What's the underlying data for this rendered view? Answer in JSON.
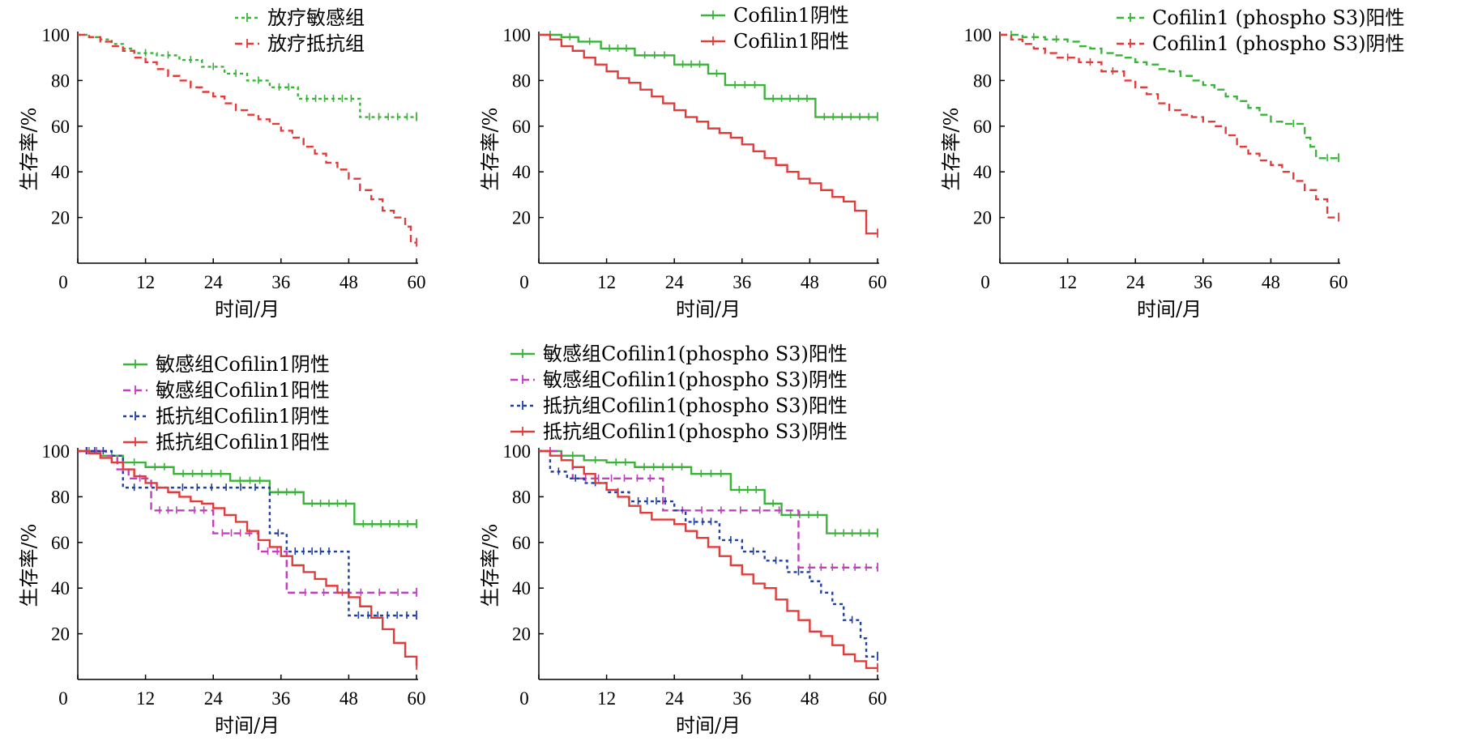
{
  "chart_data": [
    {
      "type": "line",
      "subtype": "kaplan-meier",
      "xlabel": "时间/月",
      "ylabel": "生存率/%",
      "xlim": [
        0,
        60
      ],
      "ylim": [
        0,
        100
      ],
      "xticks": [
        0,
        12,
        24,
        36,
        48,
        60
      ],
      "yticks": [
        20,
        40,
        60,
        80,
        100
      ],
      "legend_position": "top-right",
      "series": [
        {
          "name": "放疗敏感组",
          "color": "#3bb33b",
          "dash": "dotted",
          "x": [
            0,
            2,
            4,
            6,
            8,
            10,
            14,
            18,
            22,
            26,
            30,
            34,
            39,
            50,
            60
          ],
          "y": [
            100,
            99,
            98,
            96,
            94,
            92,
            91,
            89,
            86,
            83,
            80,
            77,
            72,
            64,
            64
          ]
        },
        {
          "name": "放疗抵抗组",
          "color": "#e03c3c",
          "dash": "dashed",
          "x": [
            0,
            2,
            4,
            6,
            8,
            10,
            12,
            14,
            16,
            18,
            20,
            22,
            24,
            26,
            28,
            30,
            32,
            34,
            36,
            38,
            40,
            42,
            44,
            46,
            48,
            50,
            52,
            54,
            56,
            58,
            59,
            60
          ],
          "y": [
            100,
            99,
            97,
            95,
            93,
            90,
            88,
            85,
            82,
            80,
            77,
            75,
            73,
            70,
            67,
            65,
            63,
            61,
            58,
            55,
            51,
            48,
            44,
            41,
            37,
            32,
            28,
            23,
            20,
            16,
            9,
            9
          ]
        }
      ]
    },
    {
      "type": "line",
      "subtype": "kaplan-meier",
      "xlabel": "时间/月",
      "ylabel": "生存率/%",
      "xlim": [
        0,
        60
      ],
      "ylim": [
        0,
        100
      ],
      "xticks": [
        0,
        12,
        24,
        36,
        48,
        60
      ],
      "yticks": [
        20,
        40,
        60,
        80,
        100
      ],
      "legend_position": "top-right",
      "series": [
        {
          "name": "Cofilin1阴性",
          "color": "#3bb33b",
          "dash": "solid",
          "x": [
            0,
            4,
            7,
            11,
            17,
            24,
            30,
            33,
            40,
            49,
            60
          ],
          "y": [
            100,
            99,
            97,
            94,
            91,
            87,
            83,
            78,
            72,
            64,
            64
          ]
        },
        {
          "name": "Cofilin1阳性",
          "color": "#e03c3c",
          "dash": "solid",
          "x": [
            0,
            2,
            4,
            6,
            8,
            10,
            12,
            14,
            16,
            18,
            20,
            22,
            24,
            26,
            28,
            30,
            32,
            34,
            36,
            38,
            40,
            42,
            44,
            46,
            48,
            50,
            52,
            54,
            56,
            58,
            60
          ],
          "y": [
            100,
            98,
            95,
            93,
            90,
            87,
            84,
            81,
            79,
            76,
            73,
            70,
            67,
            64,
            62,
            59,
            57,
            55,
            52,
            49,
            46,
            43,
            40,
            37,
            35,
            32,
            29,
            27,
            23,
            13,
            13
          ]
        }
      ]
    },
    {
      "type": "line",
      "subtype": "kaplan-meier",
      "xlabel": "时间/月",
      "ylabel": "生存率/%",
      "xlim": [
        0,
        60
      ],
      "ylim": [
        0,
        100
      ],
      "xticks": [
        0,
        12,
        24,
        36,
        48,
        60
      ],
      "yticks": [
        20,
        40,
        60,
        80,
        100
      ],
      "legend_position": "top-right",
      "series": [
        {
          "name": "Cofilin1 (phospho S3)阳性",
          "color": "#3bb33b",
          "dash": "dashed",
          "x": [
            0,
            4,
            8,
            12,
            14,
            16,
            18,
            20,
            22,
            24,
            26,
            28,
            30,
            32,
            34,
            36,
            38,
            40,
            42,
            44,
            46,
            48,
            50,
            54,
            55,
            56,
            60
          ],
          "y": [
            100,
            99,
            98,
            97,
            95,
            94,
            92,
            91,
            90,
            88,
            87,
            85,
            84,
            82,
            80,
            78,
            76,
            73,
            71,
            68,
            65,
            62,
            61,
            55,
            51,
            46,
            46
          ]
        },
        {
          "name": "Cofilin1 (phospho S3)阴性",
          "color": "#e03c3c",
          "dash": "dashed",
          "x": [
            0,
            2,
            4,
            6,
            8,
            10,
            14,
            18,
            22,
            24,
            26,
            28,
            30,
            32,
            34,
            36,
            38,
            40,
            42,
            44,
            46,
            48,
            50,
            52,
            54,
            56,
            58,
            60
          ],
          "y": [
            100,
            98,
            96,
            94,
            92,
            90,
            88,
            84,
            80,
            77,
            74,
            70,
            67,
            65,
            64,
            62,
            60,
            56,
            51,
            48,
            45,
            43,
            40,
            36,
            32,
            28,
            20,
            20
          ]
        }
      ]
    },
    {
      "type": "line",
      "subtype": "kaplan-meier",
      "xlabel": "时间/月",
      "ylabel": "生存率/%",
      "xlim": [
        0,
        60
      ],
      "ylim": [
        0,
        100
      ],
      "xticks": [
        0,
        12,
        24,
        36,
        48,
        60
      ],
      "yticks": [
        20,
        40,
        60,
        80,
        100
      ],
      "legend_position": "top-right",
      "series": [
        {
          "name": "敏感组Cofilin1阴性",
          "color": "#3bb33b",
          "dash": "solid",
          "x": [
            0,
            4,
            8,
            12,
            17,
            27,
            34,
            40,
            49,
            60
          ],
          "y": [
            100,
            98,
            95,
            93,
            90,
            87,
            82,
            77,
            68,
            68
          ]
        },
        {
          "name": "敏感组Cofilin1阳性",
          "color": "#c040c0",
          "dash": "dashed",
          "x": [
            0,
            5,
            7,
            9,
            13,
            19,
            24,
            32,
            37,
            60
          ],
          "y": [
            100,
            98,
            92,
            88,
            74,
            74,
            64,
            56,
            38,
            38
          ]
        },
        {
          "name": "抵抗组Cofilin1阴性",
          "color": "#2040a0",
          "dash": "dotted",
          "x": [
            0,
            6,
            8,
            12,
            16,
            34,
            37,
            46,
            48,
            60
          ],
          "y": [
            100,
            98,
            84,
            84,
            84,
            64,
            56,
            56,
            28,
            28
          ]
        },
        {
          "name": "抵抗组Cofilin1阳性",
          "color": "#e03c3c",
          "dash": "solid",
          "x": [
            0,
            2,
            4,
            6,
            8,
            10,
            12,
            14,
            16,
            18,
            20,
            22,
            24,
            26,
            28,
            30,
            32,
            34,
            36,
            38,
            40,
            42,
            44,
            46,
            48,
            50,
            52,
            54,
            56,
            58,
            60
          ],
          "y": [
            100,
            99,
            97,
            95,
            92,
            89,
            86,
            84,
            82,
            80,
            78,
            77,
            75,
            72,
            69,
            65,
            61,
            58,
            54,
            50,
            47,
            44,
            41,
            38,
            36,
            32,
            27,
            22,
            16,
            10,
            6
          ]
        }
      ]
    },
    {
      "type": "line",
      "subtype": "kaplan-meier",
      "xlabel": "时间/月",
      "ylabel": "生存率/%",
      "xlim": [
        0,
        60
      ],
      "ylim": [
        0,
        100
      ],
      "xticks": [
        0,
        12,
        24,
        36,
        48,
        60
      ],
      "yticks": [
        20,
        40,
        60,
        80,
        100
      ],
      "legend_position": "top-left",
      "series": [
        {
          "name": "敏感组Cofilin1(phospho S3)阳性",
          "color": "#3bb33b",
          "dash": "solid",
          "x": [
            0,
            4,
            8,
            12,
            17,
            27,
            34,
            40,
            43,
            51,
            60
          ],
          "y": [
            100,
            98,
            96,
            95,
            93,
            90,
            83,
            77,
            72,
            64,
            64
          ]
        },
        {
          "name": "敏感组Cofilin1(phospho S3)阴性",
          "color": "#c040c0",
          "dash": "dashed",
          "x": [
            0,
            4,
            6,
            22,
            46,
            60
          ],
          "y": [
            100,
            96,
            88,
            74,
            49,
            49
          ]
        },
        {
          "name": "抵抗组Cofilin1(phospho S3)阳性",
          "color": "#2040a0",
          "dash": "dotted",
          "x": [
            0,
            2,
            5,
            8,
            12,
            16,
            24,
            26,
            32,
            36,
            40,
            44,
            48,
            50,
            52,
            54,
            57,
            58,
            60
          ],
          "y": [
            100,
            91,
            88,
            86,
            82,
            78,
            74,
            69,
            61,
            56,
            52,
            47,
            43,
            38,
            33,
            26,
            18,
            10,
            10
          ]
        },
        {
          "name": "抵抗组Cofilin1(phospho S3)阴性",
          "color": "#e03c3c",
          "dash": "solid",
          "x": [
            0,
            2,
            4,
            6,
            8,
            10,
            12,
            14,
            16,
            18,
            20,
            22,
            24,
            26,
            28,
            30,
            32,
            34,
            36,
            38,
            40,
            42,
            44,
            46,
            48,
            50,
            52,
            54,
            56,
            58,
            60
          ],
          "y": [
            100,
            98,
            96,
            93,
            90,
            86,
            83,
            80,
            76,
            73,
            70,
            70,
            68,
            65,
            62,
            58,
            54,
            50,
            46,
            42,
            40,
            35,
            30,
            26,
            21,
            19,
            15,
            11,
            8,
            5,
            5
          ]
        }
      ]
    }
  ]
}
